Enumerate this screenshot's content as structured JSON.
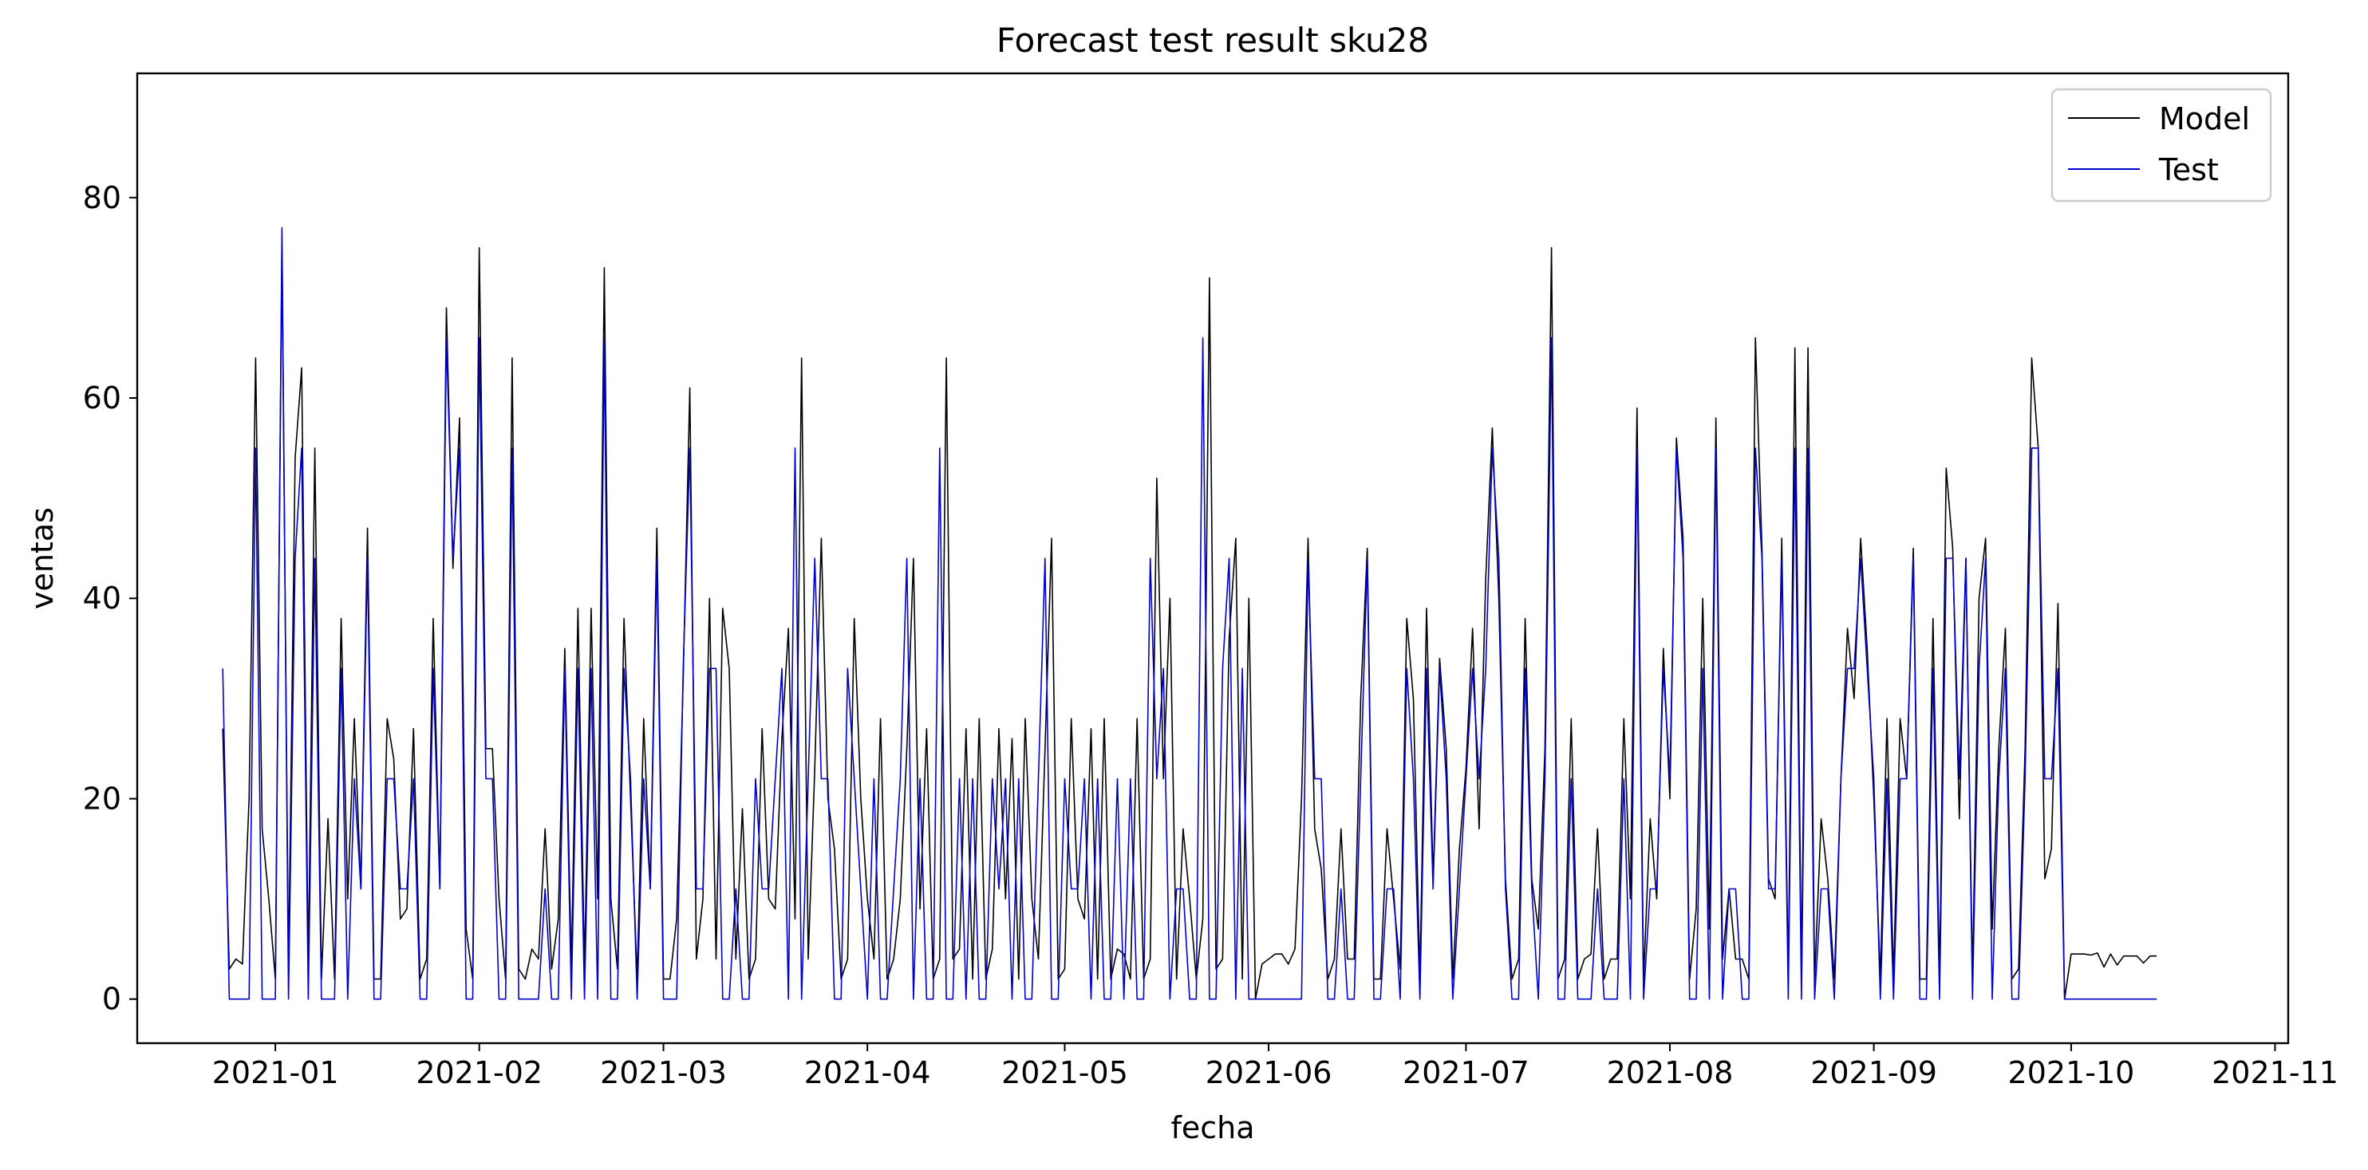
{
  "chart_data": {
    "type": "line",
    "title": "Forecast test result sku28",
    "xlabel": "fecha",
    "ylabel": "ventas",
    "x_start": "2020-12-24",
    "x_end": "2021-10-20",
    "xlim": [
      "2020-12-11",
      "2021-11-03"
    ],
    "ylim": [
      -4.4,
      92.4
    ],
    "x_ticks": [
      "2021-01-01",
      "2021-02-01",
      "2021-03-01",
      "2021-04-01",
      "2021-05-01",
      "2021-06-01",
      "2021-07-01",
      "2021-08-01",
      "2021-09-01",
      "2021-10-01",
      "2021-11-01"
    ],
    "x_tick_labels": [
      "2021-01",
      "2021-02",
      "2021-03",
      "2021-04",
      "2021-05",
      "2021-06",
      "2021-07",
      "2021-08",
      "2021-09",
      "2021-10",
      "2021-11"
    ],
    "y_ticks": [
      0,
      20,
      40,
      60,
      80
    ],
    "y_tick_labels": [
      "0",
      "20",
      "40",
      "60",
      "80"
    ],
    "grid": false,
    "legend_position": "upper-right",
    "series": [
      {
        "name": "Model",
        "color": "#000000",
        "values": [
          27,
          3,
          4,
          3.5,
          20,
          64,
          17,
          10,
          2,
          75,
          3,
          54,
          63,
          3,
          55,
          2,
          18,
          2,
          38,
          10,
          28,
          11,
          47,
          2,
          2,
          28,
          24,
          8,
          9,
          27,
          2,
          4,
          38,
          11,
          69,
          43,
          58,
          7,
          2,
          75,
          25,
          25,
          10,
          2,
          64,
          3,
          2,
          5,
          4,
          17,
          3,
          8,
          35,
          3,
          39,
          3,
          39,
          10,
          73,
          10,
          3,
          38,
          20,
          2,
          28,
          11,
          47,
          2,
          2,
          8,
          32,
          61,
          4,
          10,
          40,
          4,
          39,
          33,
          4,
          19,
          2,
          4,
          27,
          10,
          9,
          26,
          37,
          8,
          64,
          4,
          23,
          46,
          20,
          15,
          2,
          4,
          38,
          20,
          10,
          4,
          28,
          2,
          4,
          10,
          25,
          44,
          9,
          27,
          2,
          4,
          64,
          4,
          5,
          27,
          2,
          28,
          2,
          5,
          27,
          10,
          26,
          2,
          28,
          10,
          4,
          25,
          46,
          2,
          3,
          28,
          10,
          8,
          27,
          2,
          28,
          2,
          5,
          4.5,
          2,
          28,
          2,
          4,
          52,
          22,
          40,
          2,
          17,
          10,
          2,
          8,
          72,
          3,
          4,
          36,
          46,
          2,
          40,
          0,
          3.5,
          4,
          4.5,
          4.5,
          3.5,
          5,
          20,
          46,
          17,
          13,
          2,
          4,
          17,
          4,
          4,
          30,
          45,
          2,
          2,
          17,
          10,
          3,
          38,
          30,
          2,
          39,
          12,
          34,
          25,
          2,
          15,
          23,
          37,
          17,
          42,
          57,
          40,
          12,
          2,
          4,
          38,
          12,
          7,
          25,
          75,
          2,
          4,
          28,
          2,
          4,
          4.5,
          17,
          2,
          4,
          4,
          28,
          10,
          59,
          2,
          18,
          10,
          35,
          20,
          56,
          46,
          2,
          9,
          40,
          7,
          58,
          4,
          11,
          4,
          4,
          2,
          66,
          45,
          12,
          10,
          46,
          2,
          65,
          2,
          65,
          2,
          18,
          12,
          2,
          22,
          37,
          30,
          46,
          35,
          20,
          2,
          28,
          2,
          28,
          22,
          45,
          2,
          2,
          38,
          2,
          53,
          45,
          18,
          44,
          2,
          40,
          46,
          7,
          25,
          37,
          2,
          3,
          25,
          64,
          55,
          12,
          15,
          39.5,
          0,
          4.5,
          4.5,
          4.5,
          4.4,
          4.6,
          3.2,
          4.5,
          3.4,
          4.3,
          4.3,
          4.3,
          3.6,
          4.3,
          4.3
        ]
      },
      {
        "name": "Test",
        "color": "#0000cc",
        "values": [
          33,
          0,
          0,
          0,
          0,
          55,
          0,
          0,
          0,
          77,
          0,
          44,
          55,
          0,
          44,
          0,
          0,
          0,
          33,
          0,
          22,
          11,
          44,
          0,
          0,
          22,
          22,
          11,
          11,
          22,
          0,
          0,
          33,
          11,
          66,
          44,
          55,
          0,
          0,
          66,
          22,
          22,
          0,
          0,
          55,
          0,
          0,
          0,
          0,
          11,
          0,
          0,
          33,
          0,
          33,
          0,
          33,
          0,
          66,
          0,
          0,
          33,
          22,
          0,
          22,
          11,
          44,
          0,
          0,
          0,
          33,
          55,
          11,
          11,
          33,
          33,
          0,
          0,
          11,
          0,
          0,
          22,
          11,
          11,
          22,
          33,
          0,
          55,
          0,
          22,
          44,
          22,
          22,
          0,
          0,
          33,
          22,
          11,
          0,
          22,
          0,
          0,
          11,
          22,
          44,
          0,
          22,
          0,
          0,
          55,
          0,
          0,
          22,
          0,
          22,
          0,
          0,
          22,
          11,
          22,
          0,
          22,
          0,
          0,
          22,
          44,
          0,
          0,
          22,
          11,
          11,
          22,
          0,
          22,
          0,
          0,
          22,
          0,
          22,
          0,
          0,
          44,
          22,
          33,
          0,
          11,
          11,
          0,
          0,
          66,
          0,
          0,
          33,
          44,
          0,
          33,
          0,
          0,
          0,
          0,
          0,
          0,
          0,
          0,
          0,
          44,
          22,
          22,
          0,
          0,
          11,
          0,
          0,
          22,
          44,
          0,
          0,
          11,
          11,
          0,
          33,
          22,
          0,
          33,
          11,
          33,
          22,
          0,
          11,
          22,
          33,
          22,
          33,
          55,
          44,
          11,
          0,
          0,
          33,
          11,
          0,
          22,
          66,
          0,
          0,
          22,
          0,
          0,
          0,
          11,
          0,
          0,
          0,
          22,
          0,
          55,
          0,
          11,
          11,
          33,
          22,
          55,
          44,
          0,
          0,
          33,
          0,
          55,
          0,
          11,
          11,
          0,
          0,
          55,
          44,
          11,
          11,
          44,
          0,
          55,
          0,
          55,
          0,
          11,
          11,
          0,
          22,
          33,
          33,
          44,
          33,
          22,
          0,
          22,
          0,
          22,
          22,
          44,
          0,
          0,
          33,
          0,
          44,
          44,
          22,
          44,
          0,
          33,
          44,
          0,
          22,
          33,
          0,
          0,
          22,
          55,
          55,
          22,
          22,
          33,
          0,
          0,
          0,
          0,
          0,
          0,
          0,
          0,
          0,
          0,
          0,
          0,
          0,
          0,
          0
        ]
      }
    ]
  }
}
